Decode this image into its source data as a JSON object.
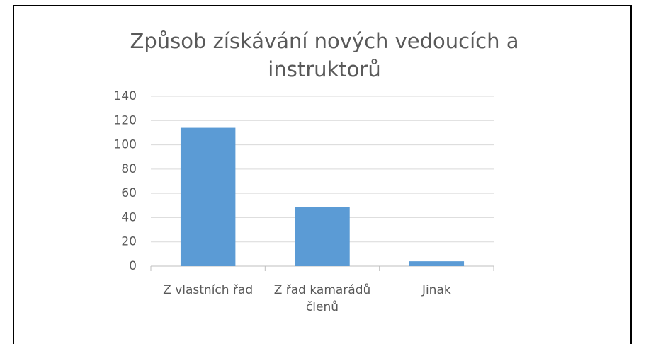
{
  "chart_data": {
    "type": "bar",
    "title": "Způsob získávání nových vedoucích a instruktorů",
    "categories": [
      "Z vlastních řad",
      "Z řad kamarádů členů",
      "Jinak"
    ],
    "values": [
      114,
      49,
      4
    ],
    "color": "#5b9bd5",
    "ylim": [
      0,
      140
    ],
    "yticks": [
      0,
      20,
      40,
      60,
      80,
      100,
      120,
      140
    ],
    "grid": true
  }
}
